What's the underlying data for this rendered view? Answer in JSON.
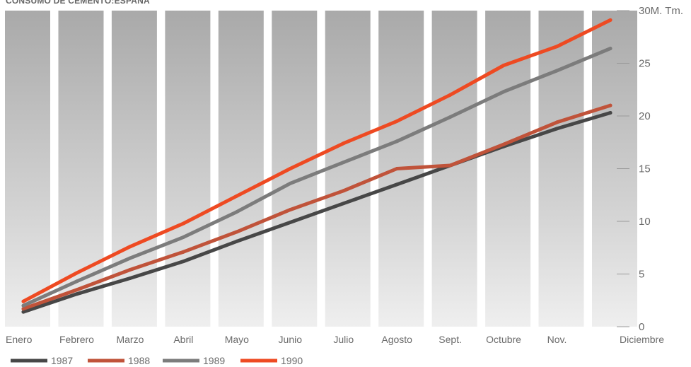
{
  "chart_data": {
    "type": "line",
    "title": "CONSUMO DE CEMENTO:ESPAÑA",
    "xlabel": "",
    "ylabel": "",
    "y_unit_label": "30M. Tm.",
    "ylim": [
      0,
      30
    ],
    "yticks": [
      0,
      5,
      10,
      15,
      20,
      25,
      30
    ],
    "ytick_labels": [
      "0",
      "5",
      "10",
      "15",
      "20",
      "25",
      "30M. Tm."
    ],
    "categories": [
      "Enero",
      "Febrero",
      "Marzo",
      "Abril",
      "Mayo",
      "Junio",
      "Julio",
      "Agosto",
      "Sept.",
      "Octubre",
      "Nov.",
      "Diciembre"
    ],
    "grid": false,
    "legend_position": "bottom-left",
    "series": [
      {
        "name": "1987",
        "color": "#474747",
        "values": [
          1.4,
          3.1,
          4.6,
          6.2,
          8.1,
          9.9,
          11.7,
          13.5,
          15.3,
          17.1,
          18.8,
          20.3
        ]
      },
      {
        "name": "1988",
        "color": "#c0533a",
        "values": [
          1.7,
          3.5,
          5.4,
          7.1,
          9.0,
          11.1,
          12.9,
          15.0,
          15.3,
          17.3,
          19.4,
          21.0
        ]
      },
      {
        "name": "1989",
        "color": "#7c7c7c",
        "values": [
          2.0,
          4.3,
          6.5,
          8.5,
          10.9,
          13.6,
          15.6,
          17.6,
          19.9,
          22.3,
          24.3,
          26.4
        ]
      },
      {
        "name": "1990",
        "color": "#ee4a22",
        "values": [
          2.4,
          5.1,
          7.6,
          9.8,
          12.4,
          15.0,
          17.4,
          19.5,
          22.0,
          24.8,
          26.6,
          29.1
        ]
      }
    ]
  }
}
